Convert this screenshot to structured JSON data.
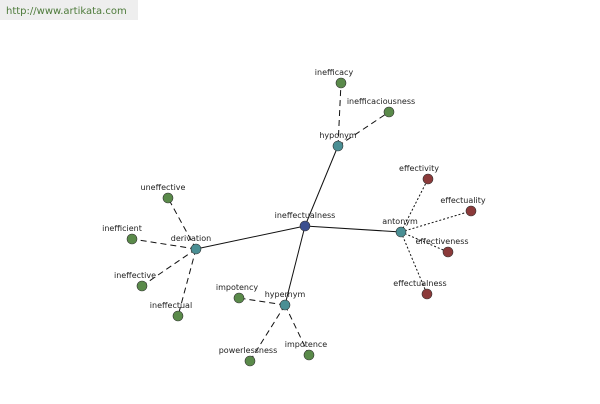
{
  "header": {
    "url": "http://www.artikata.com"
  },
  "nodes": [
    {
      "label": "ineffectualness"
    },
    {
      "label": "hyponym"
    },
    {
      "label": "inefficacy"
    },
    {
      "label": "inefficaciousness"
    },
    {
      "label": "antonym"
    },
    {
      "label": "effectivity"
    },
    {
      "label": "effectuality"
    },
    {
      "label": "effectiveness"
    },
    {
      "label": "effectualness"
    },
    {
      "label": "hypernym"
    },
    {
      "label": "impotency"
    },
    {
      "label": "powerlessness"
    },
    {
      "label": "impotence"
    },
    {
      "label": "derivation"
    },
    {
      "label": "uneffective"
    },
    {
      "label": "inefficient"
    },
    {
      "label": "ineffective"
    },
    {
      "label": "ineffectual"
    }
  ]
}
